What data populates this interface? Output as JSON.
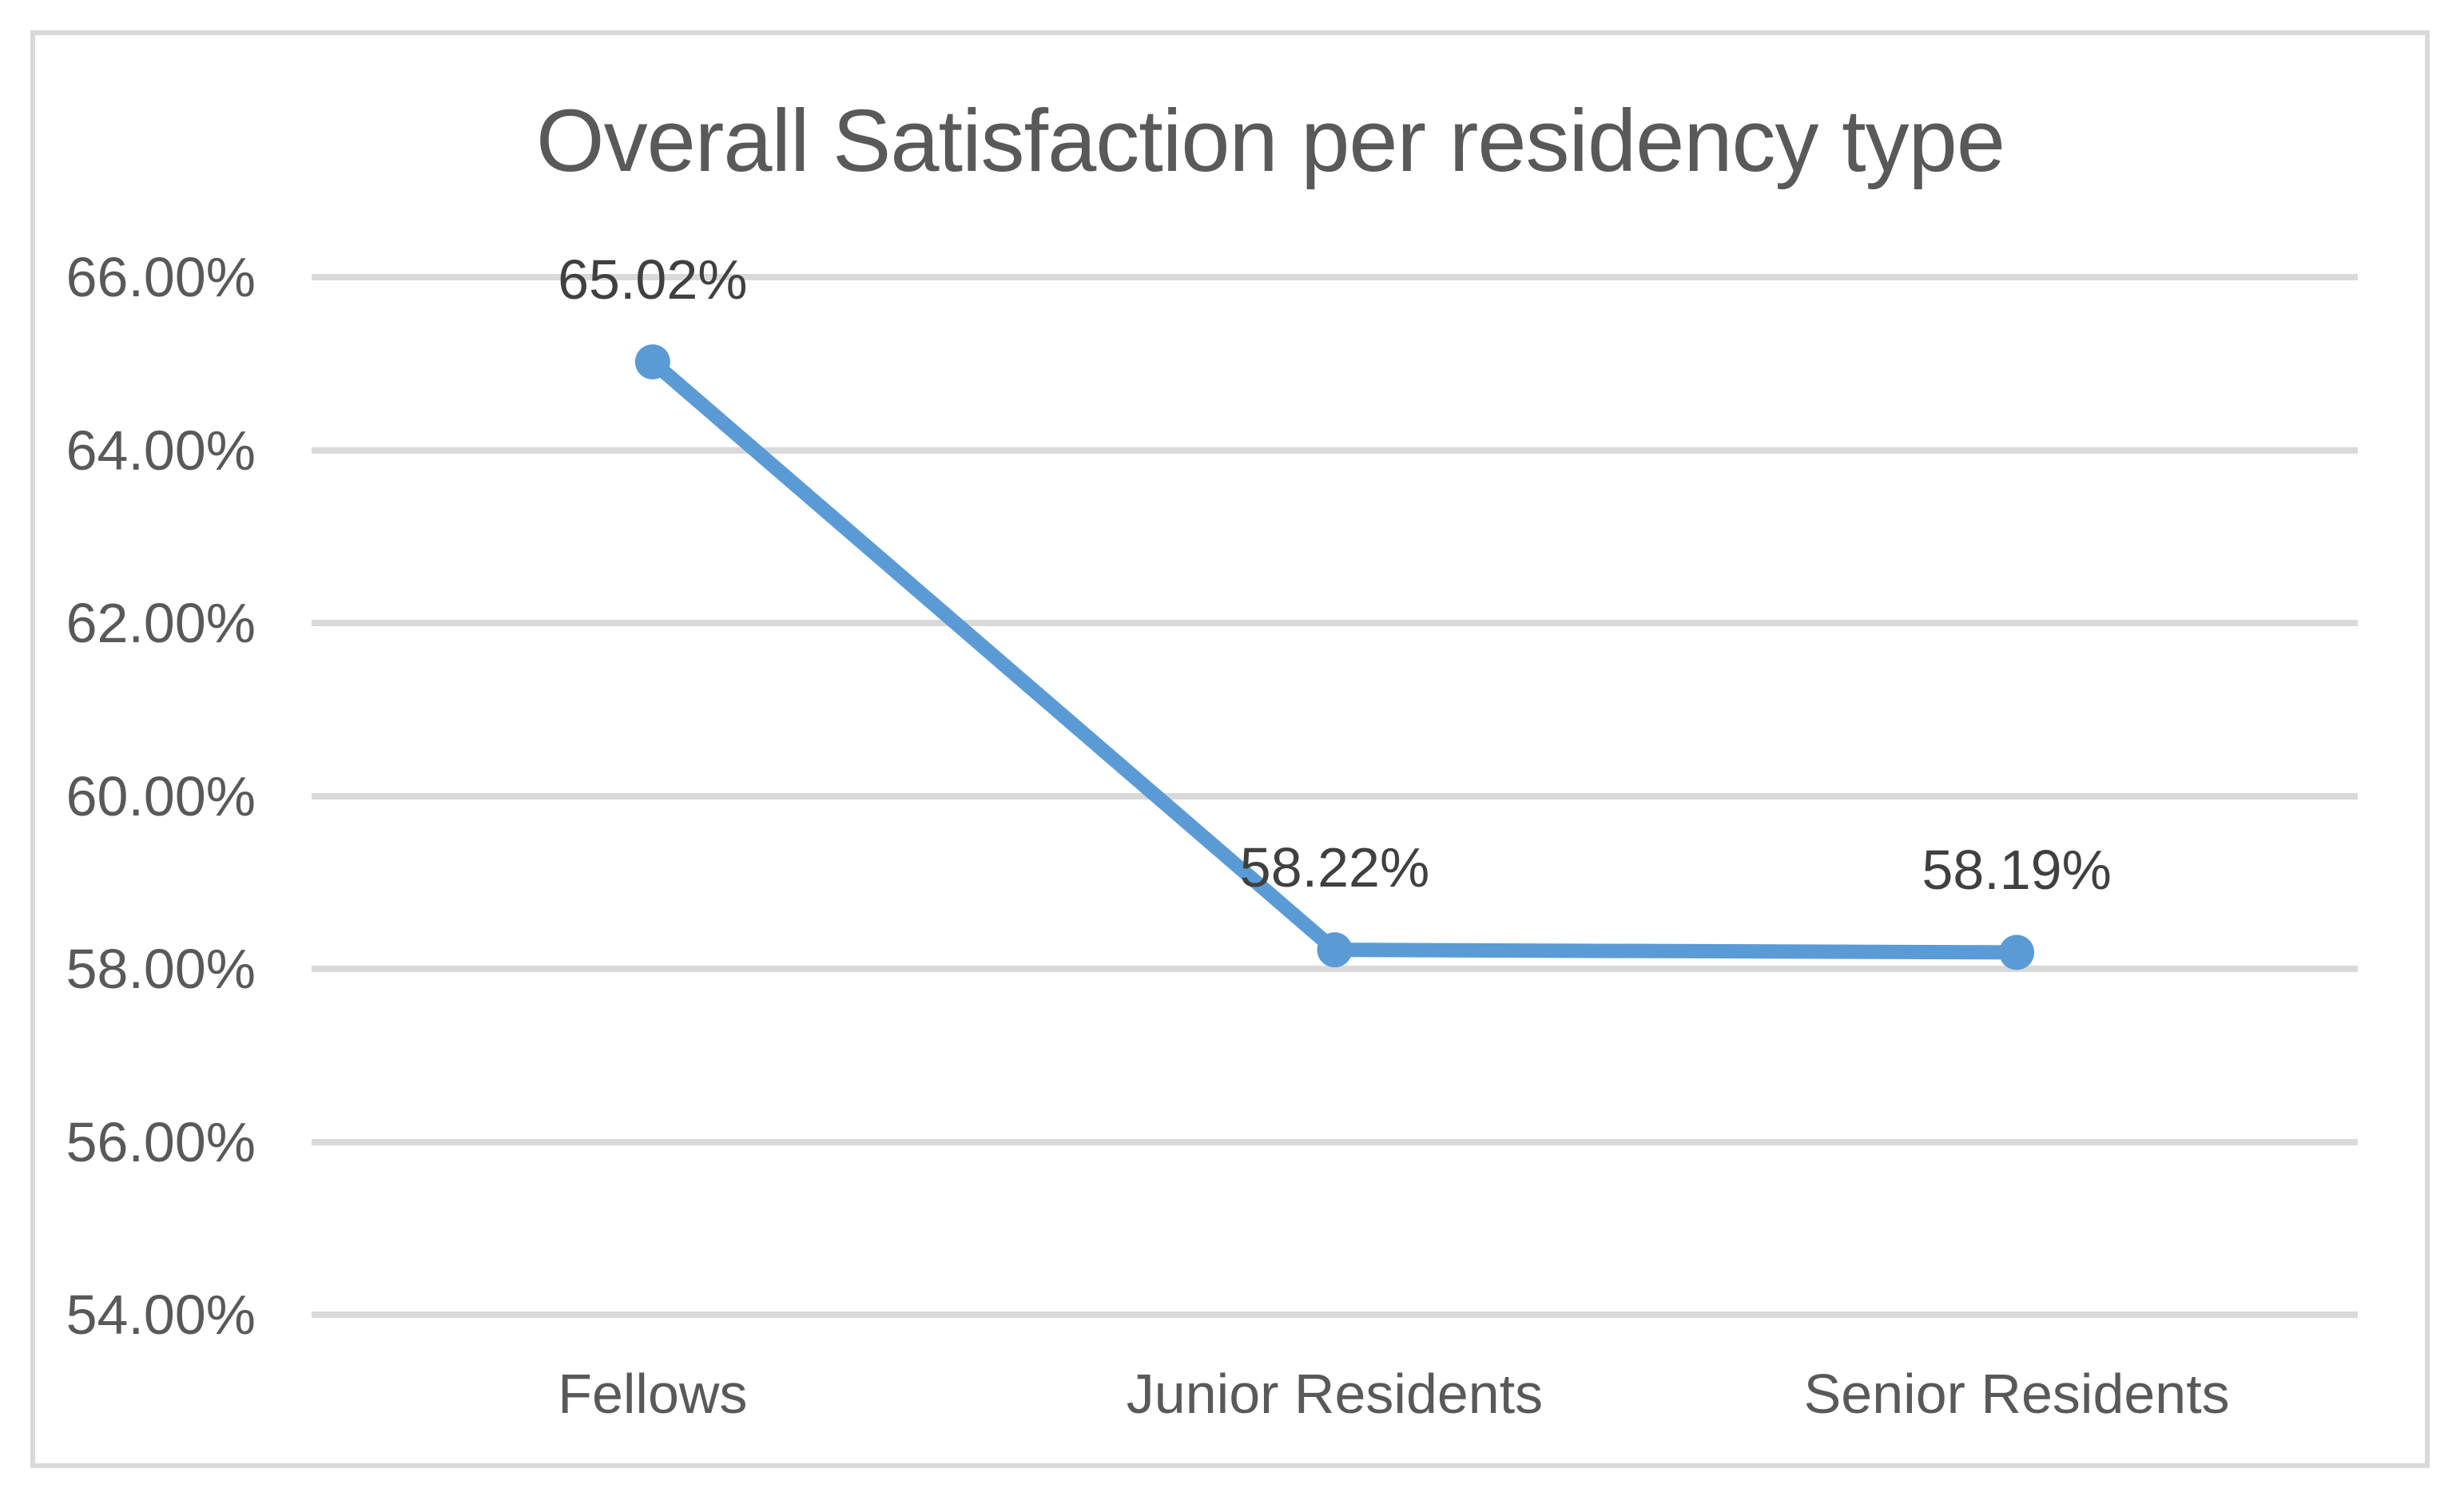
{
  "chart_data": {
    "type": "line",
    "title": "Overall Satisfaction per residency type",
    "categories": [
      "Fellows",
      "Junior Residents",
      "Senior Residents"
    ],
    "values": [
      65.02,
      58.22,
      58.19
    ],
    "point_labels": [
      "65.02%",
      "58.22%",
      "58.19%"
    ],
    "y_tick_labels": [
      "66.00%",
      "64.00%",
      "62.00%",
      "60.00%",
      "58.00%",
      "56.00%",
      "54.00%"
    ],
    "y_tick_values": [
      66,
      64,
      62,
      60,
      58,
      56,
      54
    ],
    "ylim": [
      54,
      66
    ],
    "y_tick_interval": 2,
    "xlabel": "",
    "ylabel": "",
    "legend": "none",
    "grid": true,
    "marker": "circle",
    "colors": {
      "series_line": "#5B9BD5",
      "marker_fill": "#5B9BD5",
      "gridline": "#D9D9D9",
      "chart_border": "#D9D9D9",
      "title_text": "#595959",
      "axis_text": "#595959",
      "point_label_text": "#404040",
      "background": "#FFFFFF"
    }
  }
}
